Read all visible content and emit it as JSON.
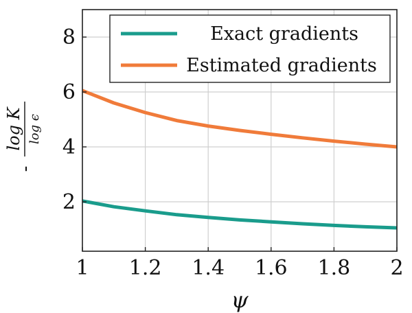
{
  "chart_data": {
    "type": "line",
    "xlabel": "ψ",
    "ylabel": {
      "prefix": "-",
      "numerator": "log K",
      "denominator": "log ϵ"
    },
    "xlim": [
      1,
      2
    ],
    "ylim": [
      0.2,
      9
    ],
    "x_ticks": [
      1,
      1.2,
      1.4,
      1.6,
      1.8,
      2
    ],
    "x_tick_labels": [
      "1",
      "1.2",
      "1.4",
      "1.6",
      "1.8",
      "2"
    ],
    "y_ticks": [
      2,
      4,
      6,
      8
    ],
    "y_tick_labels": [
      "2",
      "4",
      "6",
      "8"
    ],
    "grid": true,
    "legend_position": "top-right",
    "series": [
      {
        "name": "Exact gradients",
        "color": "#1a9c8c",
        "x": [
          1.0,
          1.1,
          1.2,
          1.3,
          1.4,
          1.5,
          1.6,
          1.7,
          1.8,
          1.9,
          2.0
        ],
        "y": [
          2.03,
          1.82,
          1.67,
          1.53,
          1.43,
          1.34,
          1.27,
          1.2,
          1.14,
          1.09,
          1.05
        ]
      },
      {
        "name": "Estimated gradients",
        "color": "#f07b3a",
        "x": [
          1.0,
          1.1,
          1.2,
          1.3,
          1.4,
          1.5,
          1.6,
          1.7,
          1.8,
          1.9,
          2.0
        ],
        "y": [
          6.05,
          5.6,
          5.25,
          4.96,
          4.76,
          4.6,
          4.46,
          4.33,
          4.21,
          4.1,
          4.0
        ]
      }
    ]
  }
}
